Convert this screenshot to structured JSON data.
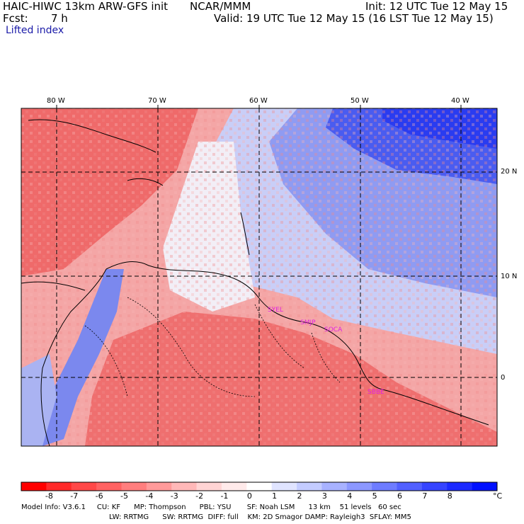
{
  "header": {
    "model_title": "HAIC-HIWC 13km ARW-GFS init",
    "org": "NCAR/MMM",
    "init": "Init: 12 UTC Tue 12 May 15",
    "fcst_label": "Fcst:",
    "fcst_value": "7 h",
    "valid": "Valid: 19 UTC Tue 12 May 15 (16 LST Tue 12 May 15)",
    "field": "Lifted index"
  },
  "map": {
    "lon_labels": [
      "80 W",
      "70 W",
      "60 W",
      "50 W",
      "40 W"
    ],
    "lat_labels": [
      "20 N",
      "10 N",
      "0"
    ],
    "stations": [
      "SYEL",
      "SMJP",
      "SOCA",
      "SBBE"
    ],
    "colors": {
      "red_strong": "#ef5a5a",
      "red_light": "#f4a6a6",
      "blue_strong": "#2a3cf0",
      "blue_light": "#b9c2f7",
      "neutral": "#f5f5fa",
      "station": "#e020e0"
    }
  },
  "colorbar": {
    "labels": [
      "-8",
      "-7",
      "-6",
      "-5",
      "-4",
      "-3",
      "-2",
      "-1",
      "0",
      "1",
      "2",
      "3",
      "4",
      "5",
      "6",
      "7",
      "8"
    ],
    "unit": "°C",
    "colors": [
      "#ff0000",
      "#ff2a2a",
      "#ff4848",
      "#ff6262",
      "#ff7e7e",
      "#ff9a9a",
      "#ffb8b8",
      "#ffd4d4",
      "#ffeaea",
      "#ffffff",
      "#e0e4ff",
      "#c4ccff",
      "#a8b2ff",
      "#8c98ff",
      "#6e7cff",
      "#5260ff",
      "#3644ff",
      "#1c2aff",
      "#0010ff"
    ]
  },
  "footer": {
    "line1": "Model Info: V3.6.1     CU: KF      MP: Thompson      PBL: YSU       SF: Noah LSM      13 km    51 levels   60 sec",
    "line2": "LW: RRTMG      SW: RRTMG  DIFF: full    KM: 2D Smagor DAMP: Rayleigh3  SFLAY: MM5"
  }
}
